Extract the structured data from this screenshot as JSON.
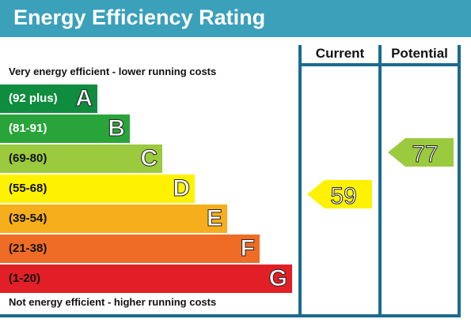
{
  "title": "Energy Efficiency Rating",
  "top_caption": "Very energy efficient - lower running costs",
  "bottom_caption": "Not energy efficient - higher running costs",
  "columns": {
    "current": "Current",
    "potential": "Potential"
  },
  "bands": [
    {
      "range": "(92 plus)",
      "letter": "A",
      "color": "#0f8c3e"
    },
    {
      "range": "(81-91)",
      "letter": "B",
      "color": "#29a43a"
    },
    {
      "range": "(69-80)",
      "letter": "C",
      "color": "#9bca3e"
    },
    {
      "range": "(55-68)",
      "letter": "D",
      "color": "#fff200"
    },
    {
      "range": "(39-54)",
      "letter": "E",
      "color": "#f7ae1c"
    },
    {
      "range": "(21-38)",
      "letter": "F",
      "color": "#ef6c26"
    },
    {
      "range": "(1-20)",
      "letter": "G",
      "color": "#e21f26"
    }
  ],
  "current": {
    "value": "59",
    "band": "D",
    "color": "#fff200"
  },
  "potential": {
    "value": "77",
    "band": "C",
    "color": "#9bca3e"
  },
  "colors": {
    "header": "#3ba0b9",
    "frame": "#1a6b8e"
  }
}
